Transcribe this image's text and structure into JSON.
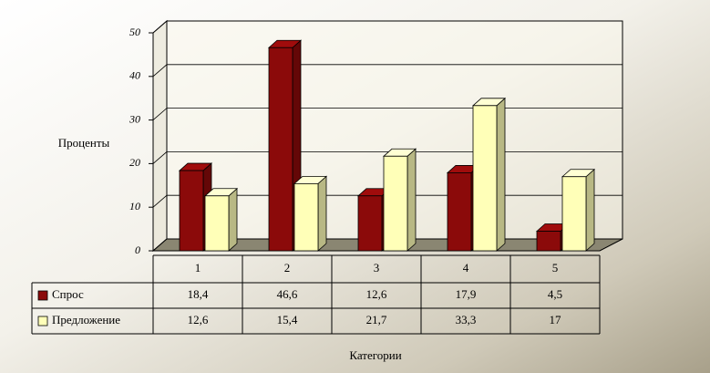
{
  "chart_data": {
    "type": "bar3d",
    "y_label": "Проценты",
    "x_label": "Категории",
    "categories": [
      "1",
      "2",
      "3",
      "4",
      "5"
    ],
    "series": [
      {
        "name": "Спрос",
        "color": "#8b0a0a",
        "values": [
          18.4,
          46.6,
          12.6,
          17.9,
          4.5
        ],
        "value_labels": [
          "18,4",
          "46,6",
          "12,6",
          "17,9",
          "4,5"
        ]
      },
      {
        "name": "Предложение",
        "color": "#ffffb8",
        "values": [
          12.6,
          15.4,
          21.7,
          33.3,
          17
        ],
        "value_labels": [
          "12,6",
          "15,4",
          "21,7",
          "33,3",
          "17"
        ]
      }
    ],
    "ylim": [
      0,
      50
    ],
    "yticks": [
      0,
      10,
      20,
      30,
      40,
      50
    ],
    "grid": true
  }
}
